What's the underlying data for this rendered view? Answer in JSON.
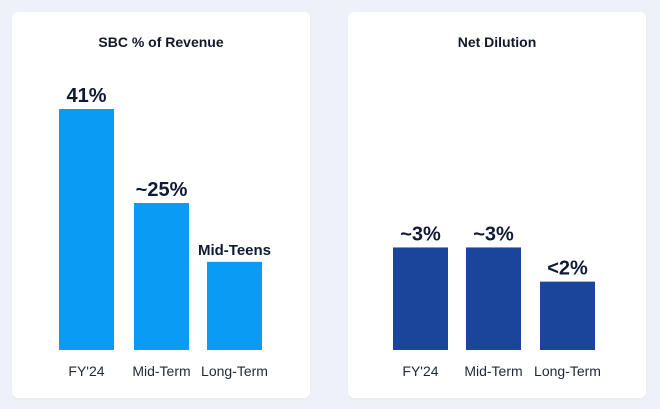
{
  "chart_data": [
    {
      "type": "bar",
      "title": "SBC % of Revenue",
      "categories": [
        "FY'24",
        "Mid-Term",
        "Long-Term"
      ],
      "values": [
        41,
        25,
        15
      ],
      "data_labels": [
        "41%",
        "~25%",
        "Mid-Teens"
      ],
      "ylim": [
        0,
        41
      ],
      "bar_color": "#0a9bf5",
      "grid": false,
      "legend": "none"
    },
    {
      "type": "bar",
      "title": "Net Dilution",
      "categories": [
        "FY'24",
        "Mid-Term",
        "Long-Term"
      ],
      "values": [
        3,
        3,
        2
      ],
      "data_labels": [
        "~3%",
        "~3%",
        "<2%"
      ],
      "ylim": [
        0,
        7.05
      ],
      "bar_color": "#1a459b",
      "grid": false,
      "legend": "none"
    }
  ]
}
